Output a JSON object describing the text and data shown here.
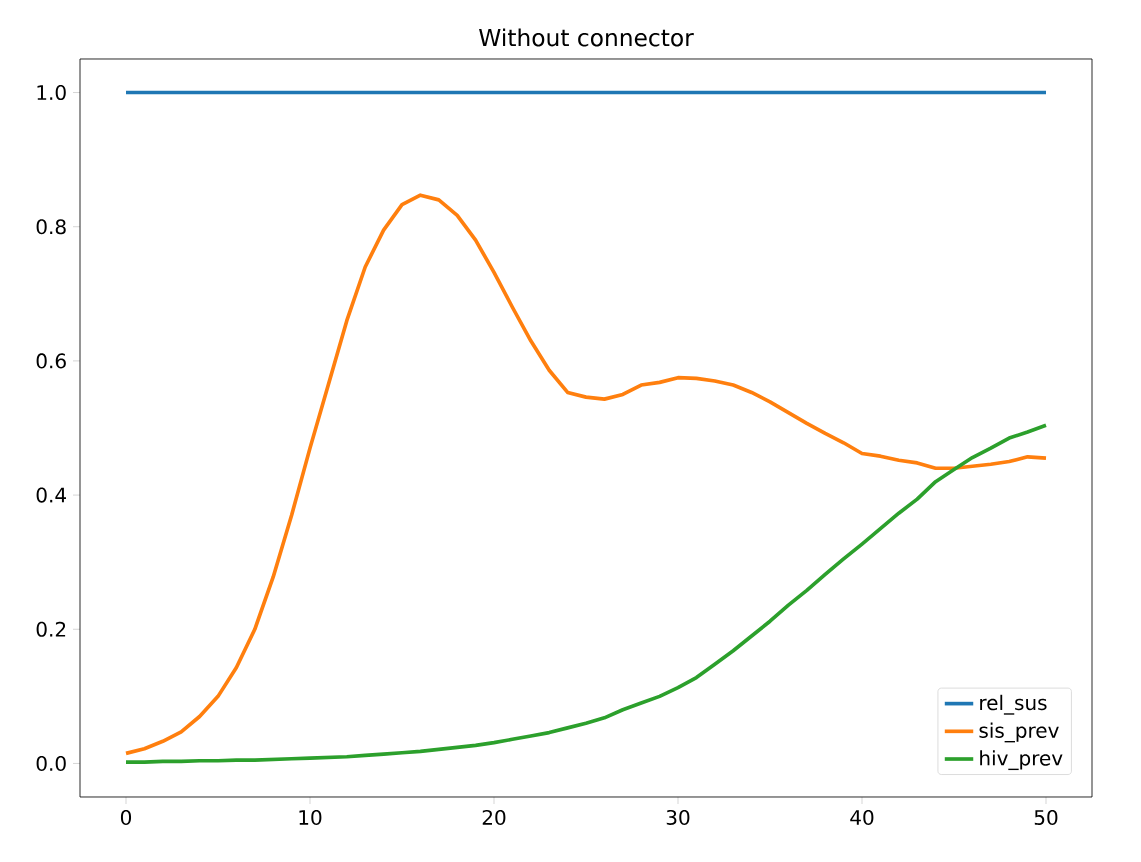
{
  "chart_data": {
    "type": "line",
    "title": "Without connector",
    "x": [
      0,
      1,
      2,
      3,
      4,
      5,
      6,
      7,
      8,
      9,
      10,
      11,
      12,
      13,
      14,
      15,
      16,
      17,
      18,
      19,
      20,
      21,
      22,
      23,
      24,
      25,
      26,
      27,
      28,
      29,
      30,
      31,
      32,
      33,
      34,
      35,
      36,
      37,
      38,
      39,
      40,
      41,
      42,
      43,
      44,
      45,
      46,
      47,
      48,
      49,
      50
    ],
    "series": [
      {
        "name": "rel_sus",
        "color": "#1f77b4",
        "values": [
          1,
          1,
          1,
          1,
          1,
          1,
          1,
          1,
          1,
          1,
          1,
          1,
          1,
          1,
          1,
          1,
          1,
          1,
          1,
          1,
          1,
          1,
          1,
          1,
          1,
          1,
          1,
          1,
          1,
          1,
          1,
          1,
          1,
          1,
          1,
          1,
          1,
          1,
          1,
          1,
          1,
          1,
          1,
          1,
          1,
          1,
          1,
          1,
          1,
          1,
          1
        ]
      },
      {
        "name": "sis_prev",
        "color": "#ff7f0e",
        "values": [
          0.015,
          0.022,
          0.033,
          0.047,
          0.07,
          0.1,
          0.143,
          0.2,
          0.278,
          0.37,
          0.47,
          0.565,
          0.66,
          0.74,
          0.795,
          0.833,
          0.847,
          0.84,
          0.817,
          0.78,
          0.732,
          0.68,
          0.63,
          0.586,
          0.553,
          0.546,
          0.543,
          0.55,
          0.564,
          0.568,
          0.575,
          0.574,
          0.57,
          0.564,
          0.553,
          0.539,
          0.523,
          0.507,
          0.492,
          0.478,
          0.462,
          0.458,
          0.452,
          0.448,
          0.44,
          0.44,
          0.443,
          0.446,
          0.45,
          0.457,
          0.455
        ]
      },
      {
        "name": "hiv_prev",
        "color": "#2ca02c",
        "values": [
          0.002,
          0.002,
          0.003,
          0.003,
          0.004,
          0.004,
          0.005,
          0.005,
          0.006,
          0.007,
          0.008,
          0.009,
          0.01,
          0.012,
          0.014,
          0.016,
          0.018,
          0.021,
          0.024,
          0.027,
          0.031,
          0.036,
          0.041,
          0.046,
          0.053,
          0.06,
          0.068,
          0.08,
          0.09,
          0.1,
          0.113,
          0.128,
          0.148,
          0.168,
          0.19,
          0.212,
          0.236,
          0.258,
          0.282,
          0.305,
          0.327,
          0.35,
          0.373,
          0.394,
          0.42,
          0.438,
          0.456,
          0.47,
          0.485,
          0.494,
          0.504
        ]
      }
    ],
    "xlim": [
      -2.5,
      52.5
    ],
    "ylim": [
      -0.05,
      1.05
    ],
    "xticks": [
      0,
      10,
      20,
      30,
      40,
      50
    ],
    "yticks": [
      {
        "value": 0,
        "label": "0.0"
      },
      0.2,
      0.4,
      0.6,
      0.8,
      {
        "value": 1,
        "label": "1.0"
      }
    ],
    "legend": "bottom right",
    "marker": "none",
    "line_style": "solid",
    "grid": false
  }
}
